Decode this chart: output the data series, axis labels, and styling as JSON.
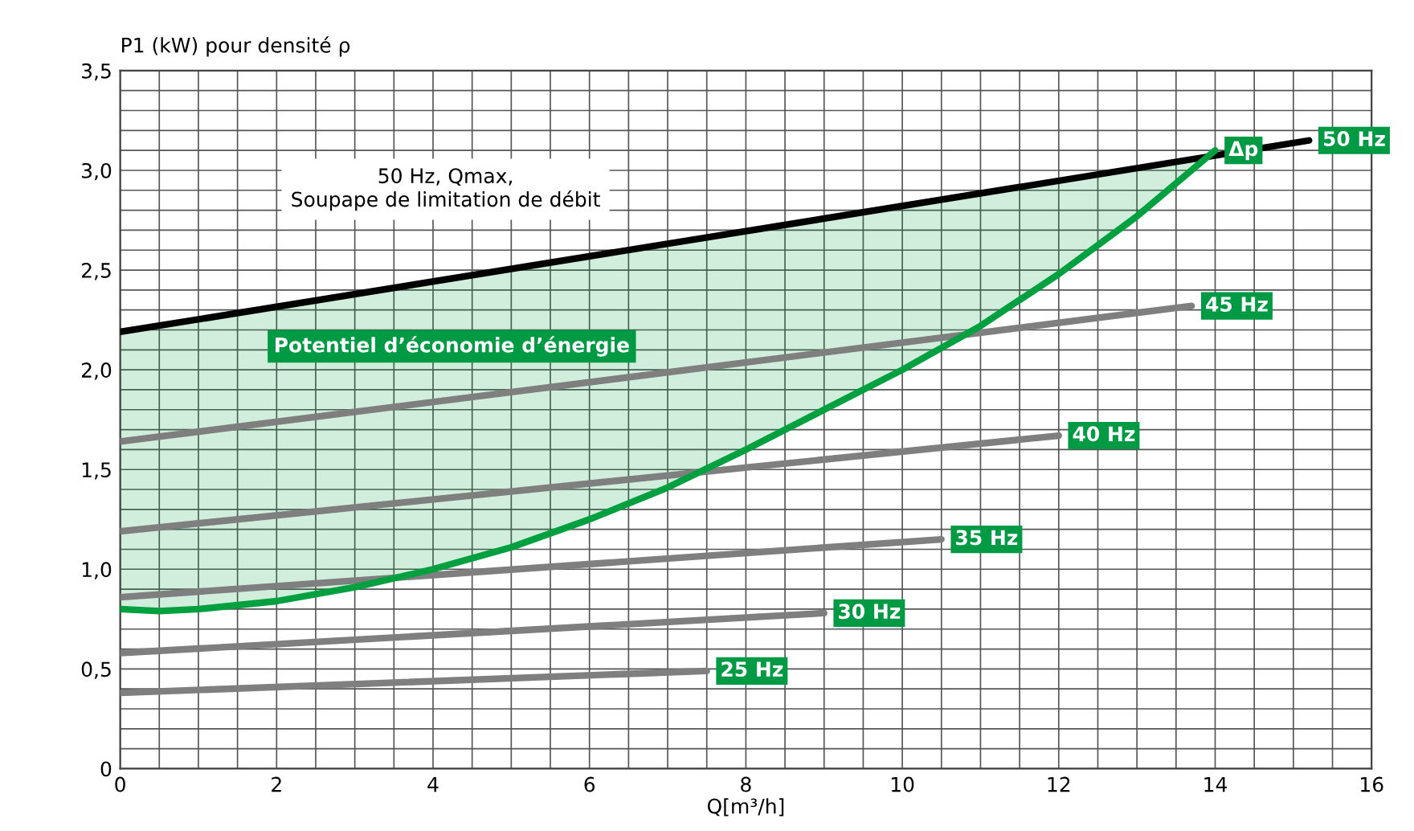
{
  "chart_data": {
    "type": "line",
    "ylabel": "P1 (kW) pour densité ρ",
    "xlabel": "Q[m³/h]",
    "xlim": [
      0,
      16
    ],
    "ylim": [
      0,
      3.5
    ],
    "xticks": [
      0,
      {
        "value": 0.5,
        "label": null
      },
      {
        "value": 1,
        "label": null
      },
      {
        "value": 1.5,
        "label": null
      },
      2,
      {
        "value": 2.5,
        "label": null
      },
      {
        "value": 3,
        "label": null
      },
      {
        "value": 3.5,
        "label": null
      },
      4,
      {
        "value": 4.5,
        "label": null
      },
      {
        "value": 5,
        "label": null
      },
      {
        "value": 5.5,
        "label": null
      },
      6,
      {
        "value": 6.5,
        "label": null
      },
      {
        "value": 7,
        "label": null
      },
      {
        "value": 7.5,
        "label": null
      },
      8,
      {
        "value": 8.5,
        "label": null
      },
      {
        "value": 9,
        "label": null
      },
      {
        "value": 9.5,
        "label": null
      },
      10,
      {
        "value": 10.5,
        "label": null
      },
      {
        "value": 11,
        "label": null
      },
      {
        "value": 11.5,
        "label": null
      },
      12,
      {
        "value": 12.5,
        "label": null
      },
      {
        "value": 13,
        "label": null
      },
      {
        "value": 13.5,
        "label": null
      },
      14,
      {
        "value": 14.5,
        "label": null
      },
      {
        "value": 15,
        "label": null
      },
      {
        "value": 15.5,
        "label": null
      },
      16
    ],
    "yticks": [
      0,
      {
        "value": 0.1,
        "label": null
      },
      {
        "value": 0.2,
        "label": null
      },
      {
        "value": 0.3,
        "label": null
      },
      {
        "value": 0.4,
        "label": null
      },
      {
        "value": 0.5,
        "label": "0,5"
      },
      {
        "value": 0.6,
        "label": null
      },
      {
        "value": 0.7,
        "label": null
      },
      {
        "value": 0.8,
        "label": null
      },
      {
        "value": 0.9,
        "label": null
      },
      {
        "value": 1,
        "label": "1,0"
      },
      {
        "value": 1.1,
        "label": null
      },
      {
        "value": 1.2,
        "label": null
      },
      {
        "value": 1.3,
        "label": null
      },
      {
        "value": 1.4,
        "label": null
      },
      {
        "value": 1.5,
        "label": "1,5"
      },
      {
        "value": 1.6,
        "label": null
      },
      {
        "value": 1.7,
        "label": null
      },
      {
        "value": 1.8,
        "label": null
      },
      {
        "value": 1.9,
        "label": null
      },
      {
        "value": 2,
        "label": "2,0"
      },
      {
        "value": 2.1,
        "label": null
      },
      {
        "value": 2.2,
        "label": null
      },
      {
        "value": 2.3,
        "label": null
      },
      {
        "value": 2.4,
        "label": null
      },
      {
        "value": 2.5,
        "label": "2,5"
      },
      {
        "value": 2.6,
        "label": null
      },
      {
        "value": 2.7,
        "label": null
      },
      {
        "value": 2.8,
        "label": null
      },
      {
        "value": 2.9,
        "label": null
      },
      {
        "value": 3,
        "label": "3,0"
      },
      {
        "value": 3.1,
        "label": null
      },
      {
        "value": 3.2,
        "label": null
      },
      {
        "value": 3.3,
        "label": null
      },
      {
        "value": 3.4,
        "label": null
      },
      {
        "value": 3.5,
        "label": "3,5"
      }
    ],
    "grid": true,
    "series": [
      {
        "name": "25 Hz",
        "color": "#7f7f7f",
        "x": [
          0,
          7.5
        ],
        "values": [
          0.38,
          0.49
        ]
      },
      {
        "name": "30 Hz",
        "color": "#7f7f7f",
        "x": [
          0,
          9
        ],
        "values": [
          0.58,
          0.78
        ]
      },
      {
        "name": "35 Hz",
        "color": "#7f7f7f",
        "x": [
          0,
          10.5
        ],
        "values": [
          0.86,
          1.15
        ]
      },
      {
        "name": "40 Hz",
        "color": "#7f7f7f",
        "x": [
          0,
          12
        ],
        "values": [
          1.19,
          1.67
        ]
      },
      {
        "name": "45 Hz",
        "color": "#7f7f7f",
        "x": [
          0,
          13.7
        ],
        "values": [
          1.64,
          2.32
        ]
      },
      {
        "name": "50 Hz",
        "color": "#000000",
        "x": [
          0,
          15.2
        ],
        "values": [
          2.19,
          3.15
        ]
      },
      {
        "name": "Δp",
        "color": "#00a040",
        "x": [
          0,
          0.5,
          1,
          2,
          3,
          4,
          5,
          6,
          7,
          8,
          9,
          10,
          11,
          12,
          13,
          14
        ],
        "values": [
          0.8,
          0.79,
          0.8,
          0.84,
          0.91,
          1.0,
          1.11,
          1.25,
          1.41,
          1.6,
          1.8,
          2.0,
          2.22,
          2.48,
          2.77,
          3.1
        ],
        "lower": [
          0.8,
          0.79,
          0.8,
          0.84,
          0.91,
          1.0,
          1.11,
          1.25,
          1.41,
          1.6,
          1.8,
          2.0,
          2.22,
          2.48,
          2.77,
          3.1
        ],
        "upper": [
          2.19,
          2.22,
          2.25,
          2.32,
          2.38,
          2.44,
          2.5,
          2.57,
          2.63,
          2.69,
          2.76,
          2.82,
          2.88,
          2.95,
          3.01,
          3.07
        ]
      }
    ],
    "annotations": [
      "50 Hz, Qmax,\nSoupape de limitation de débit",
      "Potentiel d’économie d’énergie"
    ]
  }
}
